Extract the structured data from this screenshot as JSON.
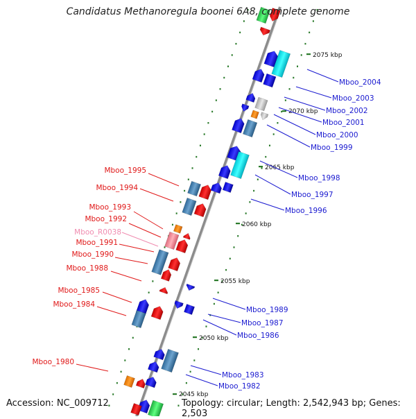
{
  "title": "Candidatus Methanoregula boonei 6A8, complete genome",
  "footer": {
    "accession": "Accession: NC_009712",
    "topology": "Topology: circular; Length: 2,542,943 bp; Genes: 2,503"
  },
  "colors": {
    "backbone": "#909090",
    "tick": "#2a7a2a",
    "forward_label": "#1a1ad0",
    "reverse_label": "#e01818",
    "rna_label": "#f08cb0"
  },
  "scale": [
    "2075 kbp",
    "2070 kbp",
    "2065 kbp",
    "2060 kbp",
    "2055 kbp",
    "2050 kbp",
    "2045 kbp"
  ],
  "right_labels": [
    "Mboo_2004",
    "Mboo_2003",
    "Mboo_2002",
    "Mboo_2001",
    "Mboo_2000",
    "Mboo_1999",
    "Mboo_1998",
    "Mboo_1997",
    "Mboo_1996",
    "Mboo_1989",
    "Mboo_1987",
    "Mboo_1986",
    "Mboo_1983",
    "Mboo_1982"
  ],
  "left_labels": [
    "Mboo_1995",
    "Mboo_1994",
    "Mboo_1993",
    "Mboo_1992",
    "Mboo_R0038",
    "Mboo_1991",
    "Mboo_1990",
    "Mboo_1988",
    "Mboo_1985",
    "Mboo_1984",
    "Mboo_1980"
  ]
}
